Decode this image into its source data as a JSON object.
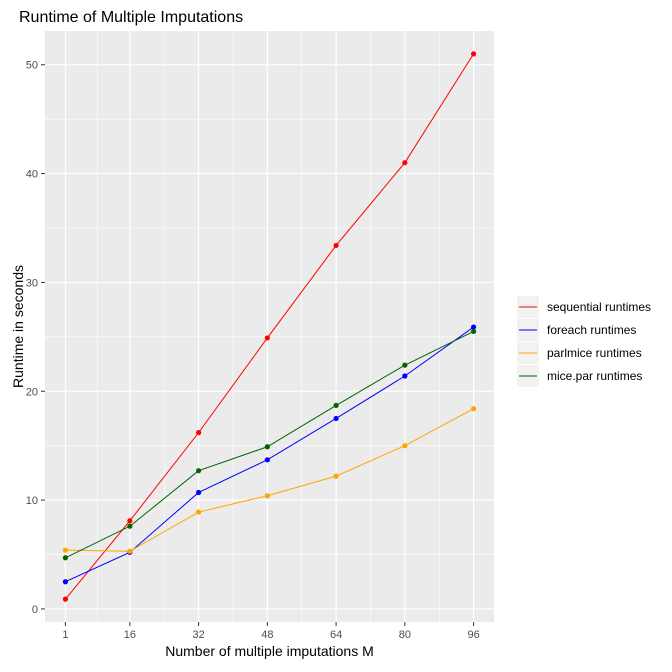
{
  "chart_data": {
    "type": "line",
    "title": "Runtime of Multiple Imputations",
    "xlabel": "Number of multiple imputations M",
    "ylabel": "Runtime in seconds",
    "x": [
      1,
      16,
      32,
      48,
      64,
      80,
      96
    ],
    "x_tick_labels": [
      "1",
      "16",
      "32",
      "48",
      "64",
      "80",
      "96"
    ],
    "y_ticks": [
      0,
      10,
      20,
      30,
      40,
      50
    ],
    "y_tick_labels": [
      "0",
      "10",
      "20",
      "30",
      "40",
      "50"
    ],
    "xlim": [
      -3.75,
      100.75
    ],
    "ylim": [
      -1.2,
      53.1
    ],
    "grid": true,
    "legend_position": "right",
    "series": [
      {
        "name": "sequential runtimes",
        "color": "#ff0000",
        "values": [
          0.9,
          8.1,
          16.2,
          24.9,
          33.4,
          41.0,
          51.0
        ]
      },
      {
        "name": "foreach runtimes",
        "color": "#0000ff",
        "values": [
          2.5,
          5.2,
          10.7,
          13.7,
          17.5,
          21.4,
          25.9
        ]
      },
      {
        "name": "parlmice runtimes",
        "color": "#ffa500",
        "values": [
          5.4,
          5.3,
          8.9,
          10.4,
          12.2,
          15.0,
          18.4
        ]
      },
      {
        "name": "mice.par runtimes",
        "color": "#006400",
        "values": [
          4.7,
          7.6,
          12.7,
          14.9,
          18.7,
          22.4,
          25.5
        ]
      }
    ]
  }
}
